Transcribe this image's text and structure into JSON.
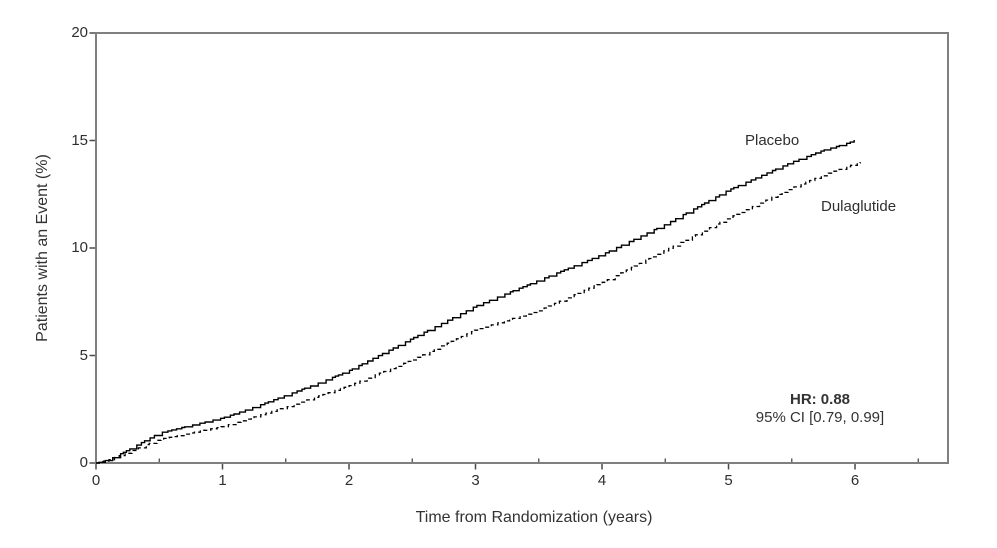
{
  "figure": {
    "background": "#ffffff",
    "frame_color": "#7f7f7f",
    "tick_color": "#4a4a4a",
    "text_color": "#2f2f2f",
    "curve_color": "#000000"
  },
  "chart_data": {
    "type": "line",
    "subtype": "kaplan-meier-cumulative-incidence",
    "title": "",
    "xlabel": "Time from Randomization (years)",
    "ylabel": "Patients with an Event (%)",
    "xlim": [
      0,
      6.735
    ],
    "ylim": [
      0,
      20
    ],
    "grid": false,
    "x_major_ticks": [
      0,
      1,
      2,
      3,
      4,
      5,
      6
    ],
    "x_minor_ticks": [
      0.5,
      1.5,
      2.5,
      3.5,
      4.5,
      5.5,
      6.5
    ],
    "y_major_ticks": [
      0,
      5,
      10,
      15,
      20
    ],
    "legend_position": "inline-labels",
    "series": [
      {
        "name": "Placebo",
        "style": "solid",
        "x": [
          0,
          0.1,
          0.25,
          0.5,
          0.75,
          1,
          1.25,
          1.5,
          1.75,
          2,
          2.25,
          2.5,
          2.75,
          3,
          3.25,
          3.5,
          3.75,
          4,
          4.25,
          4.5,
          4.75,
          5,
          5.25,
          5.5,
          5.75,
          5.9,
          6.0
        ],
        "y": [
          0,
          0.15,
          0.6,
          1.4,
          1.75,
          2.1,
          2.6,
          3.15,
          3.7,
          4.3,
          5.05,
          5.8,
          6.55,
          7.3,
          7.9,
          8.5,
          9.1,
          9.7,
          10.4,
          11.1,
          11.9,
          12.7,
          13.35,
          14.0,
          14.55,
          14.8,
          15.0
        ]
      },
      {
        "name": "Dulaglutide",
        "style": "dashed",
        "x": [
          0,
          0.1,
          0.25,
          0.5,
          0.75,
          1,
          1.25,
          1.5,
          1.75,
          2,
          2.25,
          2.5,
          2.75,
          3,
          3.25,
          3.5,
          3.75,
          4,
          4.25,
          4.5,
          4.75,
          5,
          5.25,
          5.5,
          5.75,
          6.04
        ],
        "y": [
          0,
          0.15,
          0.5,
          1.1,
          1.4,
          1.7,
          2.15,
          2.6,
          3.1,
          3.6,
          4.2,
          4.8,
          5.5,
          6.2,
          6.65,
          7.1,
          7.75,
          8.4,
          9.15,
          9.9,
          10.65,
          11.4,
          12.1,
          12.8,
          13.4,
          14.0
        ]
      }
    ],
    "annotation": {
      "line1": "HR: 0.88",
      "line2": "95% CI [0.79, 0.99]"
    }
  }
}
